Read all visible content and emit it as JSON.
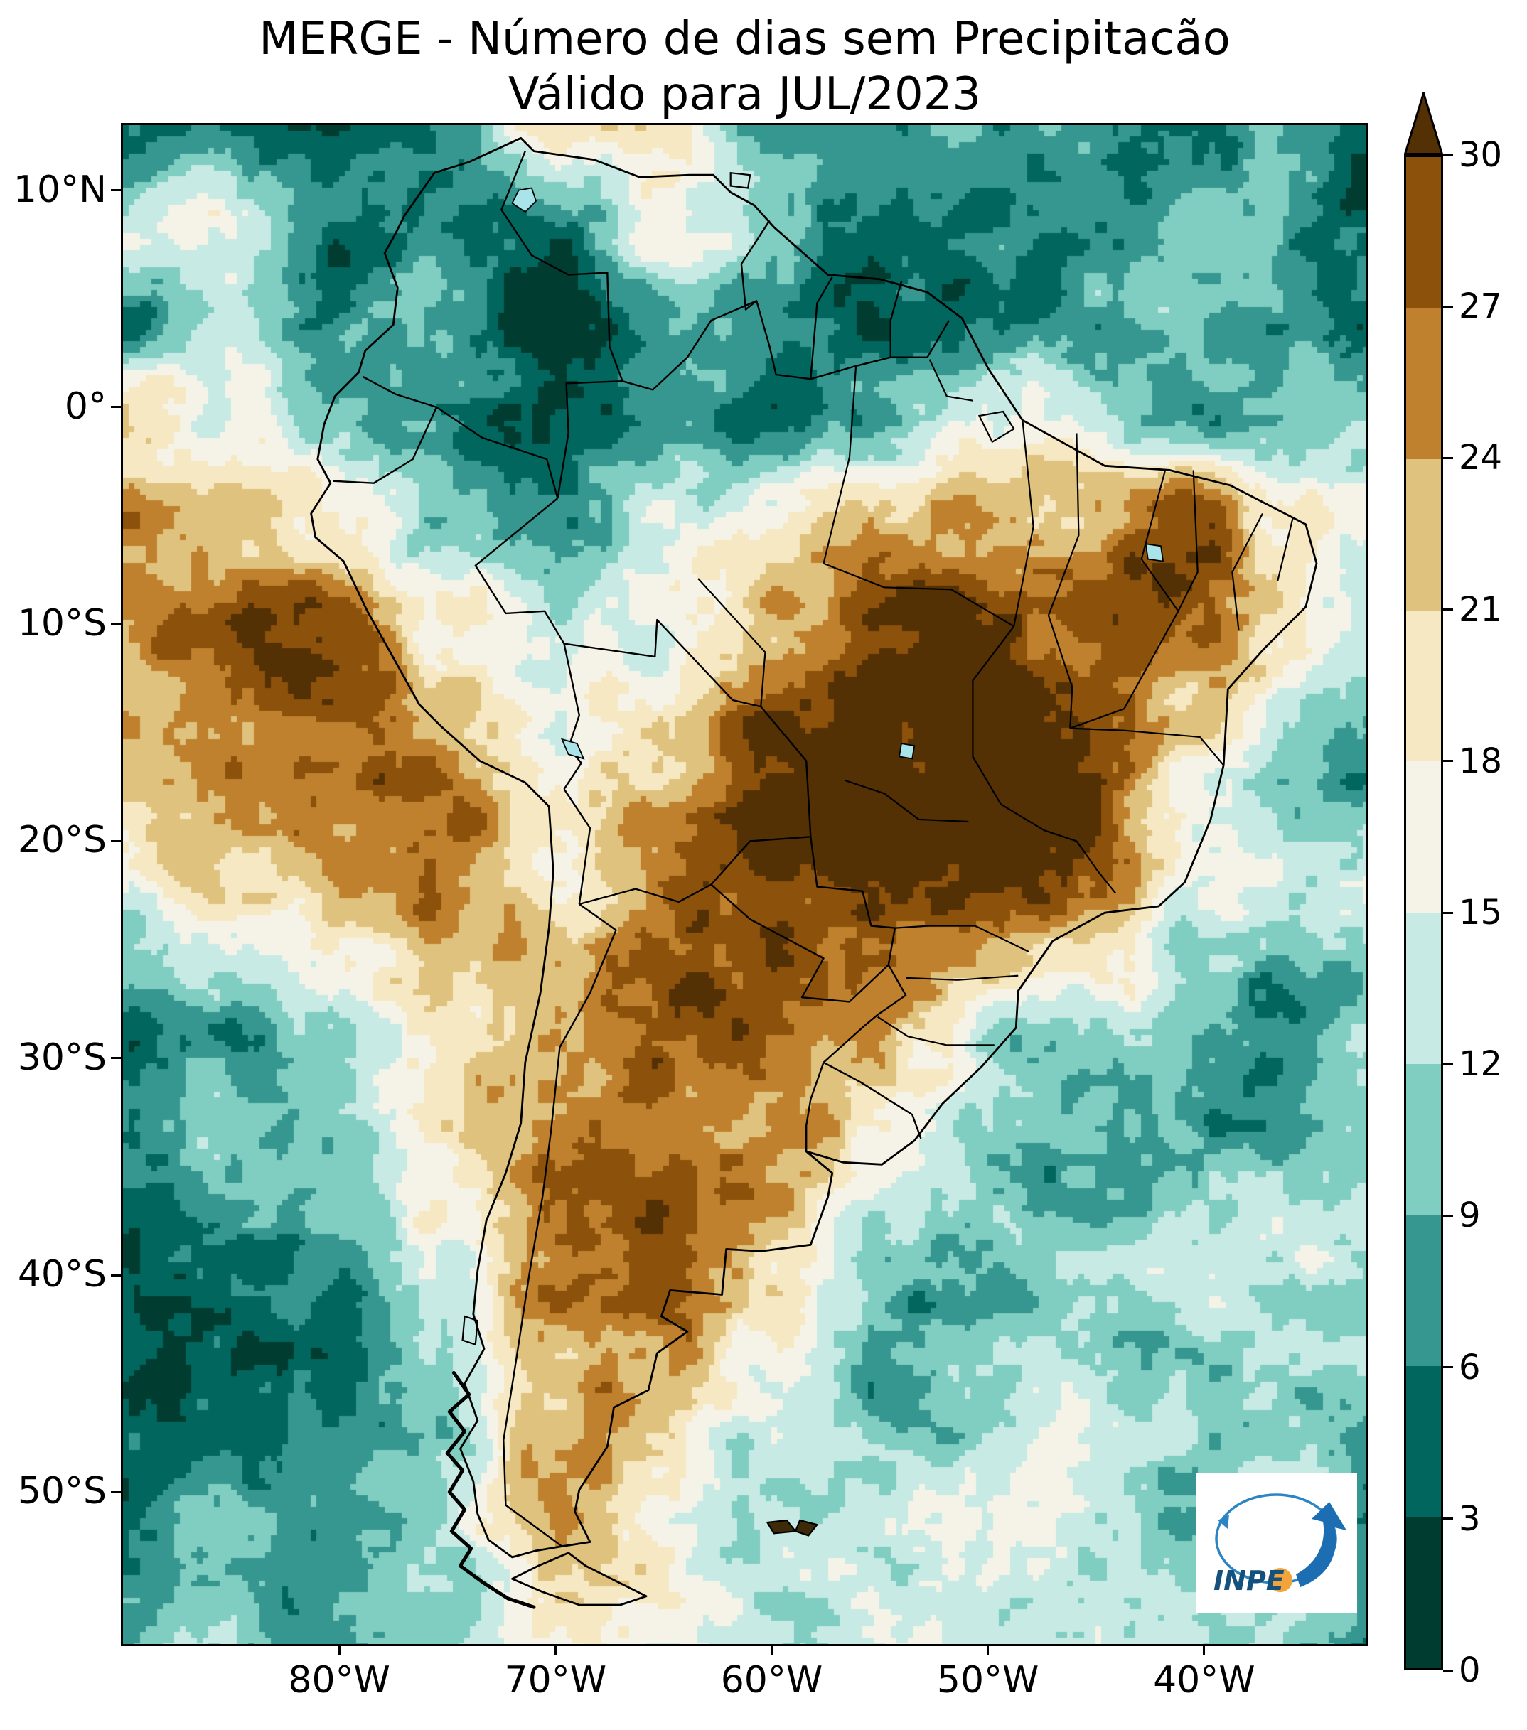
{
  "title": {
    "line1": "MERGE - Número de dias sem Precipitacão",
    "line2": "Válido para JUL/2023"
  },
  "axes": {
    "y_ticks": [
      {
        "label": "10°N",
        "lat": 10
      },
      {
        "label": "0°",
        "lat": 0
      },
      {
        "label": "10°S",
        "lat": -10
      },
      {
        "label": "20°S",
        "lat": -20
      },
      {
        "label": "30°S",
        "lat": -30
      },
      {
        "label": "40°S",
        "lat": -40
      },
      {
        "label": "50°S",
        "lat": -50
      }
    ],
    "x_ticks": [
      {
        "label": "80°W",
        "lon": -80
      },
      {
        "label": "70°W",
        "lon": -70
      },
      {
        "label": "60°W",
        "lon": -60
      },
      {
        "label": "50°W",
        "lon": -50
      },
      {
        "label": "40°W",
        "lon": -40
      }
    ]
  },
  "colorbar": {
    "min": 0,
    "max": 30,
    "tick_values": [
      0,
      3,
      6,
      9,
      12,
      15,
      18,
      21,
      24,
      27,
      30
    ],
    "tick_labels": [
      "0",
      "3",
      "6",
      "9",
      "12",
      "15",
      "18",
      "21",
      "24",
      "27",
      "30"
    ],
    "segment_colors": [
      "#003c30",
      "#01665e",
      "#35978f",
      "#80cdc1",
      "#c7eae5",
      "#f5f3e7",
      "#f6e8c3",
      "#dfc27d",
      "#bf812d",
      "#8c510a"
    ],
    "over_color": "#543005"
  },
  "logo": {
    "text": "INPE",
    "blue": "#1d6db3",
    "light_blue": "#2b85c4",
    "orange": "#f2a33c"
  },
  "chart_data": {
    "type": "heatmap",
    "title": "MERGE - Número de dias sem Precipitacão",
    "subtitle": "Válido para JUL/2023",
    "variable": "number of days without precipitation in the month",
    "units": "dias",
    "value_range": [
      0,
      30
    ],
    "bin_size": 3,
    "over_value_color": "#543005",
    "palette_order": "teal (few dry days) to brown (many dry days), BrBG reversed",
    "lon_range": [
      -90,
      -32.5
    ],
    "lat_range": [
      -57,
      13
    ],
    "grid": {
      "lons": [
        -90,
        -85,
        -80,
        -75,
        -70,
        -65,
        -60,
        -55,
        -50,
        -45,
        -40,
        -36,
        -32.5
      ],
      "lats": [
        13,
        8,
        4,
        0,
        -5,
        -10,
        -15,
        -20,
        -25,
        -30,
        -35,
        -40,
        -45,
        -51,
        -57
      ],
      "values": [
        [
          6,
          4,
          3,
          5,
          22,
          18,
          6,
          5,
          6,
          7,
          6,
          5,
          4
        ],
        [
          14,
          16,
          6,
          4,
          8,
          14,
          10,
          5,
          6,
          7,
          8,
          6,
          5
        ],
        [
          6,
          15,
          8,
          6,
          5,
          6,
          7,
          6,
          7,
          8,
          9,
          7,
          6
        ],
        [
          18,
          14,
          8,
          6,
          5,
          5,
          8,
          12,
          14,
          12,
          10,
          9,
          10
        ],
        [
          24,
          22,
          18,
          12,
          10,
          12,
          14,
          20,
          24,
          27,
          28,
          20,
          16
        ],
        [
          26,
          28,
          26,
          20,
          14,
          18,
          24,
          28,
          31,
          31,
          31,
          24,
          12
        ],
        [
          22,
          26,
          28,
          24,
          18,
          22,
          28,
          32,
          32,
          30,
          24,
          14,
          10
        ],
        [
          18,
          22,
          26,
          28,
          22,
          24,
          30,
          32,
          31,
          28,
          16,
          12,
          12
        ],
        [
          12,
          16,
          22,
          26,
          24,
          26,
          28,
          26,
          24,
          20,
          12,
          10,
          12
        ],
        [
          8,
          10,
          14,
          22,
          26,
          28,
          26,
          22,
          14,
          12,
          8,
          10,
          14
        ],
        [
          6,
          6,
          10,
          18,
          26,
          28,
          24,
          16,
          12,
          10,
          12,
          14,
          12
        ],
        [
          5,
          6,
          8,
          14,
          24,
          26,
          18,
          12,
          10,
          12,
          14,
          12,
          10
        ],
        [
          4,
          6,
          8,
          12,
          22,
          24,
          14,
          10,
          12,
          14,
          12,
          10,
          8
        ],
        [
          6,
          8,
          10,
          14,
          22,
          20,
          12,
          14,
          16,
          14,
          12,
          10,
          9
        ],
        [
          8,
          10,
          12,
          14,
          16,
          14,
          12,
          14,
          16,
          15,
          12,
          10,
          8
        ]
      ]
    },
    "legend_position": "right vertical colorbar with pointed over-arrow at top"
  }
}
